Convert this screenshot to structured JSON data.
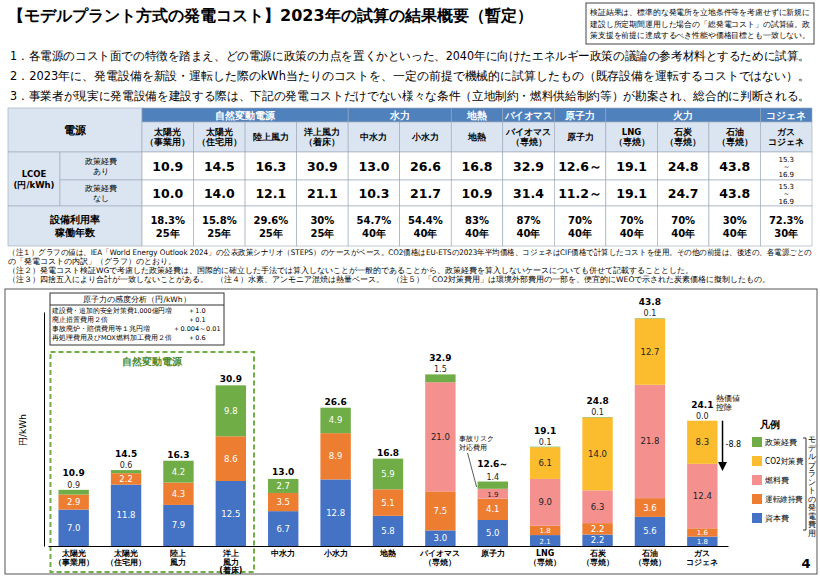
{
  "header": {
    "title": "【モデルプラント方式の発電コスト】2023年の試算の結果概要（暫定）",
    "note_box": [
      "検証結果は、標準的な発電所を立地条件等を考慮せずに新規に",
      "建設し所定期間運用した場合の「総発電コスト」の試算値。政",
      "策支援を前提に達成するべき性能や価格目標とも一致しない。"
    ],
    "points": [
      "1．各電源のコスト面での特徴を踏まえ、どの電源に政策の力点を置くかといった、2040年に向けたエネルギー政策の議論の参考材料とするために試算。",
      "2．2023年に、発電設備を新設・運転した際のkWh当たりのコストを、一定の前提で機械的に試算したもの（既存設備を運転するコストではない）。",
      "3．事業者が現実に発電設備を建設する際は、下記の発電コストだけでない様々な条件（立地制約・燃料供給制約等）が勘案され、総合的に判断される。"
    ]
  },
  "table": {
    "header_label": "電源",
    "groups": [
      {
        "label": "自然変動電源",
        "span": 4
      },
      {
        "label": "水力",
        "span": 2
      },
      {
        "label": "地熱",
        "span": 1
      },
      {
        "label": "バイオマス",
        "span": 1
      },
      {
        "label": "原子力",
        "span": 1
      },
      {
        "label": "火力",
        "span": 3
      },
      {
        "label": "コジェネ",
        "span": 1
      }
    ],
    "columns": [
      "太陽光\n（事業用）",
      "太陽光\n（住宅用）",
      "陸上風力",
      "洋上風力\n（着床）",
      "中水力",
      "小水力",
      "地熱",
      "バイオマス\n（専焼）",
      "原子力",
      "LNG\n（専焼）",
      "石炭\n（専焼）",
      "石油\n（専焼）",
      "ガス\nコジェネ"
    ],
    "lcoe_label": "LCOE\n(円/kWh)",
    "rows": [
      {
        "label": "政策経費\nあり",
        "values": [
          "10.9",
          "14.5",
          "16.3",
          "30.9",
          "13.0",
          "26.6",
          "16.8",
          "32.9",
          "12.6～",
          "19.1",
          "24.8",
          "43.8",
          "15.3\n～\n16.9"
        ]
      },
      {
        "label": "政策経費\nなし",
        "values": [
          "10.0",
          "14.0",
          "12.1",
          "21.1",
          "10.3",
          "21.7",
          "10.9",
          "31.4",
          "11.2～",
          "19.1",
          "24.7",
          "43.8",
          "15.3\n～\n16.9"
        ]
      }
    ],
    "utilization_label": "設備利用率\n稼働年数",
    "utilization": [
      "18.3%\n25年",
      "15.8%\n25年",
      "29.6%\n25年",
      "30%\n25年",
      "54.7%\n40年",
      "54.4%\n40年",
      "83%\n40年",
      "87%\n40年",
      "70%\n40年",
      "70%\n40年",
      "70%\n40年",
      "30%\n40年",
      "72.3%\n30年"
    ]
  },
  "notes": [
    "（注１）グラフの値は、IEA「World Energy Outlook 2024」の公表政策シナリオ（STEPS）のケースがベース。CO2価格はEU-ETSの2023年平均価格、コジェネはCIF価格で計算したコストを使用。その他の前提は、後述の、各電源ごとの",
    "の「発電コストの内訳」（グラフ）のとおり。",
    "（注２）発電コスト検証WGで考慮した政策経費は、国際的に確立した手法では算入しないことが一般的であることから、政策経費を算入しないケースについても併せて記載することとした。",
    "（注３）四捨五入により合計が一致しないことがある。　（注４）水素、アンモニア混焼は熱量ベース。　（注５）「CO2対策費用」は環境外部費用の一部を、便宜的にWEOで示された炭素価格に擬制したもの。"
  ],
  "nuclear_sensitivity": {
    "title": "原子力の感度分析（円/kWh）",
    "rows": [
      [
        "建設費・追加的安全対策費1,000億円増",
        "＋1.0"
      ],
      [
        "廃止措置費用２倍",
        "＋0.1"
      ],
      [
        "事故廃炉・賠償費用等１兆円増",
        "＋0.004～0.01"
      ],
      [
        "再処理費用及びMOX燃料加工費用２倍",
        "＋0.6"
      ]
    ]
  },
  "chart_data": {
    "type": "bar",
    "stacked": true,
    "data_labels": true,
    "tick_labels": "x",
    "legend": "right",
    "legend_title": "凡例",
    "legend_bracket_label": "モデルプラントの発電費用",
    "y_label": "円/kWh",
    "ylim": [
      0,
      45
    ],
    "categories": [
      "太陽光\n（事業用）",
      "太陽光\n（住宅用）",
      "陸上\n風力",
      "洋上\n風力\n(着床)",
      "中水力",
      "小水力",
      "地熱",
      "バイオマス\n（専焼）",
      "原子力",
      "LNG\n（専焼）",
      "石炭\n（専焼）",
      "石油\n（専焼）",
      "ガス\nコジェネ"
    ],
    "series": [
      {
        "name": "資本費",
        "color": "#4472c4",
        "values": [
          7.0,
          11.8,
          7.9,
          12.5,
          6.7,
          12.8,
          5.8,
          3.0,
          5.0,
          2.1,
          2.2,
          5.6,
          1.8
        ],
        "value_labels": [
          "7.0",
          "11.8",
          "7.9",
          "12.5",
          "6.7",
          "12.8",
          "5.8",
          "3.0",
          "5.0",
          "2.1",
          "2.2",
          "5.6",
          "1.8"
        ]
      },
      {
        "name": "運転維持費",
        "color": "#ed7d31",
        "values": [
          2.9,
          2.2,
          4.3,
          8.6,
          3.5,
          8.9,
          5.1,
          7.5,
          4.1,
          1.8,
          2.2,
          3.6,
          1.6
        ],
        "value_labels": [
          "2.9",
          "2.2",
          "4.3",
          "8.6",
          "3.5",
          "8.9",
          "5.1",
          "7.5",
          "4.1",
          "1.8",
          "2.2",
          "3.6",
          "1.6"
        ]
      },
      {
        "name": "燃料費",
        "color": "#f4918f",
        "values": [
          null,
          null,
          null,
          null,
          null,
          null,
          null,
          21.0,
          1.9,
          9.0,
          6.3,
          21.8,
          12.4
        ],
        "value_labels": [
          null,
          null,
          null,
          null,
          null,
          null,
          null,
          "21.0",
          "1.9",
          "9.0",
          "6.3",
          "21.8",
          "12.4"
        ]
      },
      {
        "name": "CO2対策費",
        "color": "#fbbd2d",
        "values": [
          null,
          null,
          null,
          null,
          null,
          null,
          null,
          null,
          null,
          6.1,
          14.0,
          12.7,
          8.3
        ],
        "value_labels": [
          null,
          null,
          null,
          null,
          null,
          null,
          null,
          null,
          null,
          "6.1",
          "14.0",
          "12.7",
          "8.3"
        ]
      },
      {
        "name": "政策経費",
        "color": "#70ad47",
        "values": [
          0.9,
          0.6,
          4.2,
          9.8,
          2.7,
          4.9,
          5.9,
          1.5,
          1.4,
          0.1,
          0.1,
          0.1,
          0.0
        ],
        "value_labels": [
          "0.9",
          "0.6",
          "4.2",
          "9.8",
          "2.7",
          "4.9",
          "5.9",
          "1.5",
          "1.4",
          "0.1",
          "0.1",
          "0.1",
          "0.0"
        ]
      }
    ],
    "totals": [
      10.9,
      14.5,
      16.3,
      30.9,
      13.0,
      26.6,
      16.8,
      32.9,
      12.6,
      19.1,
      24.8,
      43.8,
      24.1
    ],
    "total_labels": [
      "10.9",
      "14.5",
      "16.3",
      "30.9",
      "13.0",
      "26.6",
      "16.8",
      "32.9",
      "12.6～",
      "19.1",
      "24.8",
      "43.8",
      "24.1"
    ],
    "heat_deduction": {
      "category": "ガス\nコジェネ",
      "label": "熱価値\n控除",
      "value": -8.8
    },
    "annotation": {
      "category": "原子力",
      "text": "事故リスク\n対応費用"
    },
    "group_box": {
      "label": "自然変動電源",
      "categories": [
        "太陽光\n（事業用）",
        "太陽光\n（住宅用）",
        "陸上\n風力",
        "洋上\n風力\n(着床)"
      ]
    },
    "page_number": 4
  }
}
